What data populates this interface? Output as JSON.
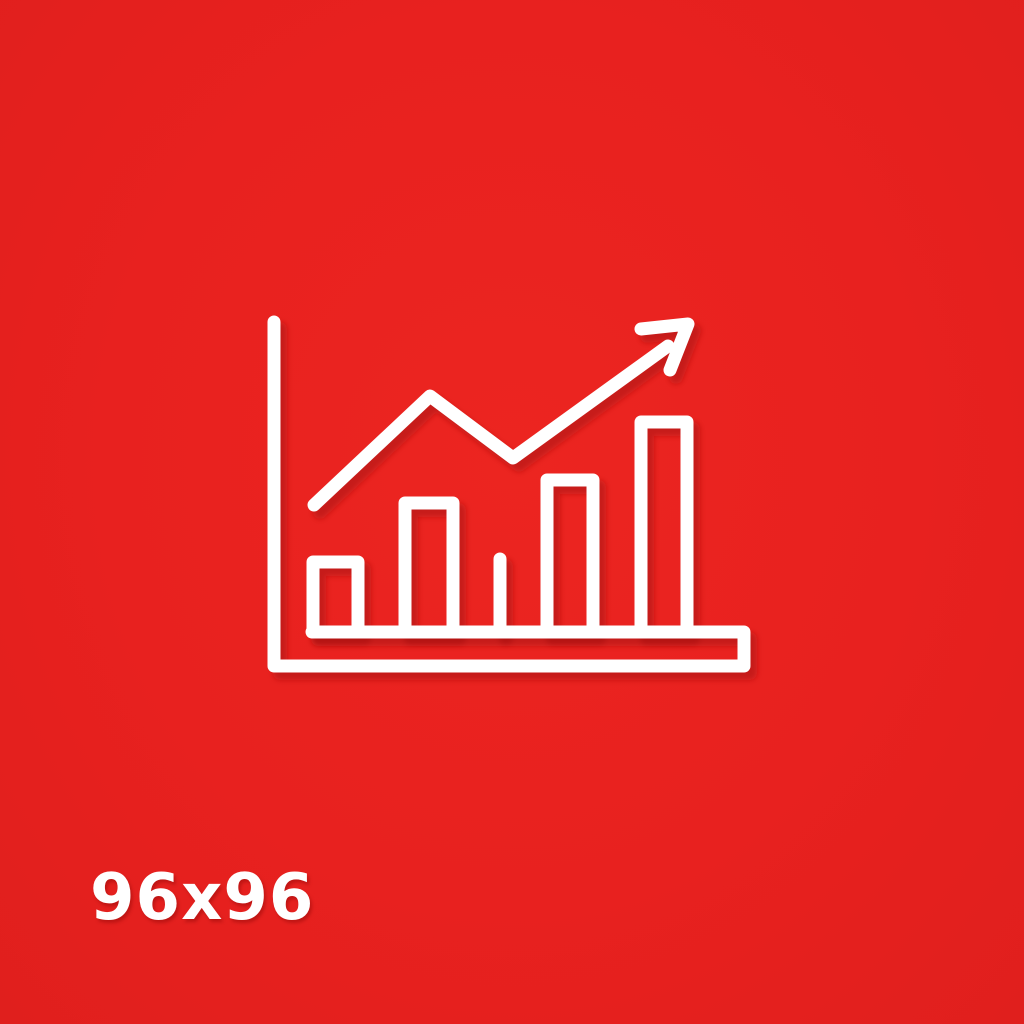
{
  "colors": {
    "background": "#e8211f",
    "foreground": "#ffffff",
    "shadow": "#a8100f"
  },
  "icon": {
    "name": "growth-chart-icon",
    "bar_count": 5,
    "trend": "up"
  },
  "size_label": "96x96"
}
